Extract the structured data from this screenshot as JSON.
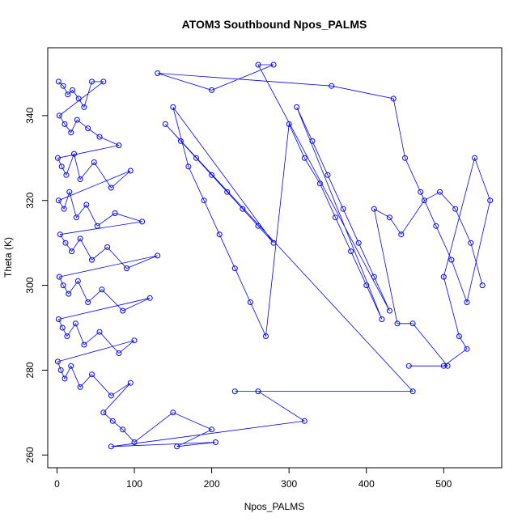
{
  "chart_data": {
    "type": "scatter",
    "title": "ATOM3 Southbound Npos_PALMS",
    "xlabel": "Npos_PALMS",
    "ylabel": "Theta (K)",
    "xlim": [
      -12,
      575
    ],
    "ylim": [
      257,
      356
    ],
    "xticks": [
      0,
      100,
      200,
      300,
      400,
      500
    ],
    "yticks": [
      260,
      280,
      300,
      320,
      340
    ],
    "x_tick_labels": [
      "0",
      "100",
      "200",
      "300",
      "400",
      "500"
    ],
    "y_tick_labels": [
      "260",
      "280",
      "300",
      "320",
      "340"
    ],
    "series_style": {
      "color": "#0000ff",
      "marker": "open-circle",
      "connected": true
    },
    "grid": false,
    "note": "Dense point cloud summarized as a representative subset of estimated points read from the figure.",
    "series": [
      {
        "values": [
          [
            2,
            348
          ],
          [
            8,
            347
          ],
          [
            14,
            345
          ],
          [
            20,
            346
          ],
          [
            28,
            344
          ],
          [
            35,
            342
          ],
          [
            45,
            348
          ],
          [
            60,
            348
          ],
          [
            3,
            340
          ],
          [
            10,
            338
          ],
          [
            18,
            336
          ],
          [
            26,
            339
          ],
          [
            40,
            337
          ],
          [
            55,
            335
          ],
          [
            80,
            333
          ],
          [
            1,
            330
          ],
          [
            6,
            328
          ],
          [
            12,
            326
          ],
          [
            22,
            331
          ],
          [
            30,
            325
          ],
          [
            48,
            329
          ],
          [
            70,
            323
          ],
          [
            95,
            327
          ],
          [
            2,
            320
          ],
          [
            9,
            318
          ],
          [
            16,
            322
          ],
          [
            25,
            316
          ],
          [
            38,
            319
          ],
          [
            52,
            314
          ],
          [
            75,
            317
          ],
          [
            110,
            315
          ],
          [
            4,
            312
          ],
          [
            11,
            310
          ],
          [
            19,
            308
          ],
          [
            30,
            311
          ],
          [
            45,
            306
          ],
          [
            65,
            309
          ],
          [
            90,
            304
          ],
          [
            130,
            307
          ],
          [
            3,
            302
          ],
          [
            8,
            300
          ],
          [
            15,
            298
          ],
          [
            27,
            301
          ],
          [
            40,
            296
          ],
          [
            58,
            299
          ],
          [
            85,
            294
          ],
          [
            120,
            297
          ],
          [
            2,
            292
          ],
          [
            7,
            290
          ],
          [
            13,
            288
          ],
          [
            24,
            291
          ],
          [
            35,
            286
          ],
          [
            55,
            289
          ],
          [
            80,
            284
          ],
          [
            100,
            287
          ],
          [
            1,
            282
          ],
          [
            5,
            280
          ],
          [
            10,
            278
          ],
          [
            18,
            281
          ],
          [
            30,
            276
          ],
          [
            45,
            279
          ],
          [
            70,
            274
          ],
          [
            95,
            277
          ],
          [
            60,
            270
          ],
          [
            72,
            268
          ],
          [
            85,
            266
          ],
          [
            100,
            263
          ],
          [
            150,
            270
          ],
          [
            200,
            266
          ],
          [
            155,
            262
          ],
          [
            205,
            263
          ],
          [
            70,
            262
          ],
          [
            320,
            268
          ],
          [
            260,
            275
          ],
          [
            230,
            275
          ],
          [
            460,
            275
          ],
          [
            140,
            338
          ],
          [
            160,
            334
          ],
          [
            180,
            330
          ],
          [
            200,
            326
          ],
          [
            220,
            322
          ],
          [
            240,
            318
          ],
          [
            260,
            314
          ],
          [
            280,
            310
          ],
          [
            150,
            342
          ],
          [
            170,
            328
          ],
          [
            190,
            320
          ],
          [
            210,
            312
          ],
          [
            230,
            304
          ],
          [
            250,
            296
          ],
          [
            270,
            288
          ],
          [
            300,
            338
          ],
          [
            320,
            330
          ],
          [
            340,
            324
          ],
          [
            360,
            316
          ],
          [
            380,
            308
          ],
          [
            400,
            300
          ],
          [
            420,
            292
          ],
          [
            310,
            342
          ],
          [
            330,
            334
          ],
          [
            350,
            326
          ],
          [
            370,
            318
          ],
          [
            390,
            310
          ],
          [
            410,
            302
          ],
          [
            430,
            294
          ],
          [
            260,
            352
          ],
          [
            280,
            352
          ],
          [
            200,
            346
          ],
          [
            130,
            350
          ],
          [
            355,
            347
          ],
          [
            435,
            344
          ],
          [
            450,
            330
          ],
          [
            470,
            322
          ],
          [
            490,
            314
          ],
          [
            510,
            306
          ],
          [
            530,
            296
          ],
          [
            560,
            320
          ],
          [
            540,
            330
          ],
          [
            500,
            302
          ],
          [
            520,
            288
          ],
          [
            530,
            285
          ],
          [
            500,
            281
          ],
          [
            455,
            281
          ],
          [
            505,
            281
          ],
          [
            460,
            291
          ],
          [
            440,
            291
          ],
          [
            410,
            318
          ],
          [
            430,
            316
          ],
          [
            445,
            312
          ],
          [
            475,
            320
          ],
          [
            495,
            322
          ],
          [
            515,
            318
          ],
          [
            535,
            310
          ],
          [
            550,
            300
          ]
        ]
      }
    ]
  }
}
